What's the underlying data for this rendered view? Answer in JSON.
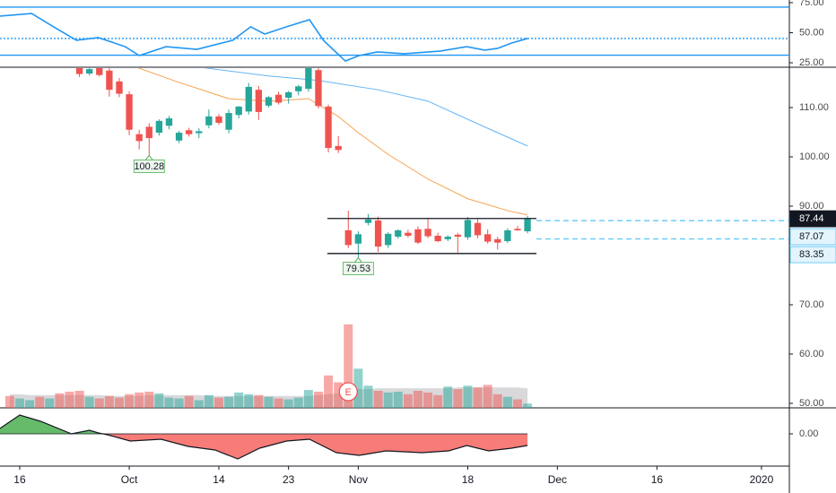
{
  "chart_data": {
    "type": "candlestick",
    "xlim": [
      -12.98,
      66.3
    ],
    "xticks": [
      {
        "value": -11,
        "label": "16"
      },
      {
        "value": 0,
        "label": "Oct"
      },
      {
        "value": 9,
        "label": "14"
      },
      {
        "value": 16,
        "label": "23"
      },
      {
        "value": 23,
        "label": "Nov"
      },
      {
        "value": 34,
        "label": "18"
      },
      {
        "value": 43,
        "label": "Dec"
      },
      {
        "value": 53,
        "label": "16"
      },
      {
        "value": 63.5,
        "label": "2020"
      }
    ],
    "ylim": [
      49.09,
      118.18
    ],
    "yticks": [
      {
        "value": 110,
        "label": "110.00"
      },
      {
        "value": 100,
        "label": "100.00"
      },
      {
        "value": 90,
        "label": "90.00"
      },
      {
        "value": 70,
        "label": "70.00"
      },
      {
        "value": 60,
        "label": "60.00"
      },
      {
        "value": 50,
        "label": "50.00"
      }
    ],
    "up_color": "#26a69a",
    "down_color": "#ef5350",
    "x": [
      -5,
      -4,
      -3,
      -2,
      -1,
      0,
      1,
      2,
      3,
      4,
      5,
      6,
      7,
      8,
      9,
      10,
      11,
      12,
      13,
      14,
      15,
      16,
      17,
      18,
      19,
      20,
      21,
      22,
      23,
      24,
      25,
      26,
      27,
      28,
      29,
      30,
      31,
      32,
      33,
      34,
      35,
      36,
      37,
      38,
      39,
      40
    ],
    "open": [
      118.5,
      116.9,
      118.6,
      117.5,
      115.3,
      112.7,
      104.6,
      106.1,
      104.9,
      106.3,
      103.3,
      105.4,
      104.8,
      106.4,
      108.2,
      105.5,
      108.5,
      109.2,
      113.6,
      110.4,
      112.6,
      112.0,
      113.3,
      113.8,
      117.6,
      110.2,
      102.2,
      85.1,
      82.4,
      86.6,
      87.1,
      82.1,
      83.8,
      84.6,
      85.3,
      85.4,
      84.0,
      83.3,
      84.2,
      83.7,
      86.6,
      84.3,
      83.3,
      82.9,
      85.4,
      84.9
    ],
    "high": [
      119.5,
      118.3,
      119.0,
      118.0,
      116.0,
      113.3,
      105.5,
      106.8,
      107.6,
      108.3,
      105.3,
      105.9,
      105.8,
      109.6,
      108.7,
      109.6,
      110.3,
      115.0,
      114.4,
      112.3,
      113.2,
      113.4,
      114.6,
      119.5,
      118.9,
      110.6,
      104.2,
      89.1,
      84.9,
      88.4,
      87.9,
      84.7,
      85.3,
      85.2,
      85.9,
      87.6,
      84.6,
      84.1,
      84.6,
      87.8,
      87.4,
      85.3,
      83.8,
      85.5,
      86.0,
      88.0
    ],
    "low": [
      116.2,
      116.5,
      116.3,
      112.2,
      112.1,
      104.4,
      101.5,
      100.28,
      104.3,
      105.6,
      102.8,
      104.1,
      103.8,
      105.8,
      106.5,
      104.8,
      107.8,
      108.6,
      107.5,
      110.0,
      110.6,
      110.8,
      112.5,
      113.2,
      109.8,
      100.9,
      100.8,
      81.5,
      79.53,
      86.1,
      80.7,
      81.5,
      83.4,
      83.6,
      82.3,
      83.5,
      82.7,
      82.9,
      80.6,
      83.2,
      83.5,
      82.4,
      81.2,
      82.5,
      85.0,
      84.5
    ],
    "close": [
      116.8,
      117.8,
      116.6,
      113.6,
      112.8,
      105.5,
      103.2,
      103.8,
      107.3,
      107.8,
      104.9,
      104.6,
      105.2,
      108.2,
      106.9,
      108.9,
      110.2,
      114.2,
      109.1,
      112.1,
      111.0,
      113.1,
      114.3,
      118.8,
      110.3,
      101.8,
      101.4,
      82.1,
      84.3,
      87.3,
      81.8,
      84.4,
      85.1,
      84.0,
      82.6,
      83.9,
      82.9,
      83.8,
      83.8,
      87.2,
      84.1,
      82.8,
      82.6,
      85.1,
      85.1,
      87.44
    ],
    "ma": [
      {
        "color": "#f7a24d",
        "x": [
          0,
          5,
          10,
          14,
          18,
          21,
          23,
          26,
          30,
          34,
          38,
          40
        ],
        "values": [
          118.7,
          115.1,
          111.8,
          111.3,
          111.8,
          108.2,
          104.9,
          100.5,
          95.5,
          91.5,
          89.1,
          88.2
        ]
      },
      {
        "color": "#64b5f6",
        "x": [
          7,
          14,
          19,
          25,
          30,
          35,
          40
        ],
        "values": [
          118.2,
          116.4,
          115.5,
          113.6,
          111.3,
          106.7,
          102.2
        ]
      }
    ],
    "channel": {
      "x": [
        19.9,
        40.9
      ],
      "levels": [
        87.5,
        80.4
      ],
      "color": "#131722"
    },
    "price_labels": [
      {
        "value": 87.44,
        "style": "last"
      },
      {
        "value": 87.07,
        "style": "line"
      },
      {
        "value": 83.35,
        "style": "line"
      }
    ],
    "low_labels": [
      {
        "x": 2,
        "value": 100.28
      },
      {
        "x": 23,
        "value": 79.53
      }
    ],
    "earnings": {
      "x": 22,
      "label": "E"
    },
    "volume": {
      "ylim": [
        0,
        100
      ],
      "up_color": "rgba(38,166,154,0.5)",
      "down_color": "rgba(239,83,80,0.5)",
      "ma_color": "rgba(170,170,175,0.45)",
      "x": [
        -12,
        -11,
        -10,
        -9,
        -8,
        -7,
        -6,
        -5,
        -4,
        -3,
        -2,
        -1,
        0,
        1,
        2,
        3,
        4,
        5,
        6,
        7,
        8,
        9,
        10,
        11,
        12,
        13,
        14,
        15,
        16,
        17,
        18,
        19,
        20,
        21,
        22,
        23,
        24,
        25,
        26,
        27,
        28,
        29,
        30,
        31,
        32,
        33,
        34,
        35,
        36,
        37,
        38,
        39,
        40
      ],
      "values": [
        14,
        11,
        9,
        13,
        11,
        17,
        19,
        20,
        13,
        11,
        14,
        12,
        16,
        18,
        19,
        17,
        12,
        11,
        14,
        9,
        15,
        12,
        13,
        18,
        16,
        15,
        13,
        11,
        10,
        12,
        21,
        19,
        38,
        30,
        98,
        46,
        26,
        20,
        18,
        19,
        16,
        20,
        18,
        15,
        25,
        22,
        26,
        24,
        27,
        16,
        13,
        10,
        5
      ],
      "dir": [
        "down",
        "up",
        "up",
        "down",
        "up",
        "down",
        "down",
        "down",
        "up",
        "down",
        "down",
        "down",
        "down",
        "down",
        "down",
        "up",
        "up",
        "up",
        "down",
        "up",
        "up",
        "down",
        "up",
        "up",
        "up",
        "down",
        "up",
        "down",
        "up",
        "up",
        "up",
        "down",
        "down",
        "down",
        "down",
        "up",
        "up",
        "down",
        "up",
        "up",
        "down",
        "down",
        "down",
        "down",
        "up",
        "down",
        "up",
        "down",
        "down",
        "down",
        "up",
        "down",
        "up"
      ],
      "ma": [
        16,
        16,
        15,
        15,
        15,
        15,
        15,
        15,
        15,
        15,
        14,
        14,
        14,
        14,
        15,
        15,
        15,
        15,
        15,
        15,
        14,
        14,
        14,
        14,
        14,
        14,
        14,
        14,
        14,
        14,
        14,
        15,
        16,
        17,
        20,
        22,
        22,
        23,
        23,
        23,
        23,
        23,
        23,
        23,
        23,
        24,
        24,
        24,
        24,
        24,
        24,
        24,
        23
      ]
    },
    "rsi": {
      "color": "#2196f3",
      "ylim": [
        21.3,
        77.2
      ],
      "yticks": [
        {
          "value": 75,
          "label": "75.00"
        },
        {
          "value": 50,
          "label": "50.00"
        },
        {
          "value": 25,
          "label": "25.00"
        }
      ],
      "levels": [
        71.3,
        45.2,
        31.3
      ],
      "x": [
        -12.98,
        -9.8,
        -7.6,
        -5.3,
        -3.1,
        -0.4,
        1.0,
        3.7,
        6.8,
        10.4,
        12.2,
        13.6,
        15.8,
        18.1,
        19.5,
        21.7,
        23.1,
        24.9,
        27.6,
        31.2,
        33.9,
        35.7,
        37.0,
        38.4,
        40.0
      ],
      "values": [
        63.8,
        66.0,
        54.9,
        43.7,
        45.9,
        38.4,
        31.0,
        38.4,
        36.2,
        43.7,
        54.9,
        48.9,
        54.9,
        60.8,
        43.7,
        26.5,
        31.0,
        34.0,
        32.5,
        34.7,
        38.4,
        35.5,
        37.0,
        41.4,
        45.2
      ]
    },
    "osc": {
      "up_color": "#66bb6a",
      "down_color": "#f77c78",
      "ylim": [
        -36,
        29
      ],
      "yticks": [
        {
          "value": 0,
          "label": "0.00"
        }
      ],
      "x": [
        -12.98,
        -11.0,
        -8.9,
        -5.8,
        -4.0,
        -3.1,
        -2.2,
        0.1,
        3.2,
        5.9,
        8.6,
        10.9,
        13.1,
        15.8,
        18.1,
        20.8,
        23.1,
        25.8,
        29.4,
        32.1,
        33.9,
        36.1,
        38.4,
        40.0
      ],
      "values": [
        6,
        21,
        14,
        0,
        4,
        1,
        -1,
        -8,
        -6,
        -14,
        -18,
        -28,
        -16,
        -8,
        -6,
        -21,
        -24,
        -19,
        -21,
        -19,
        -13,
        -19,
        -16,
        -13
      ]
    }
  }
}
